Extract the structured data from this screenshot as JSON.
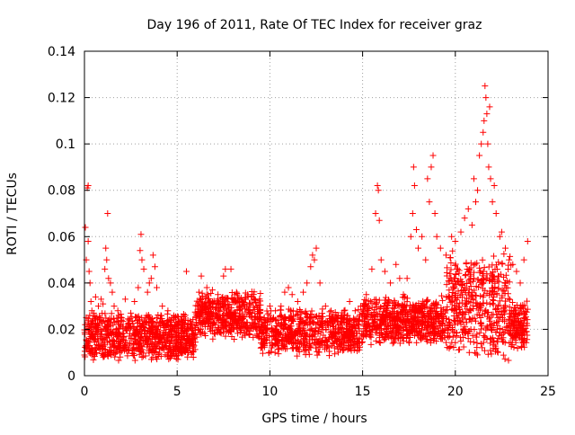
{
  "chart_data": {
    "type": "scatter",
    "title": "Day 196 of 2011, Rate Of TEC Index for receiver graz",
    "xlabel": "GPS time / hours",
    "ylabel": "ROTI / TECUs",
    "xlim": [
      0,
      25
    ],
    "ylim": [
      0,
      0.14
    ],
    "x_ticks": [
      0,
      5,
      10,
      15,
      20,
      25
    ],
    "y_ticks": [
      0,
      0.02,
      0.04,
      0.06,
      0.08,
      0.1,
      0.12,
      0.14
    ],
    "x_tick_labels": [
      "0",
      "5",
      "10",
      "15",
      "20",
      "25"
    ],
    "y_tick_labels": [
      "0",
      "0.02",
      "0.04",
      "0.06",
      "0.08",
      "0.1",
      "0.12",
      "0.14"
    ],
    "grid": true,
    "marker": "plus",
    "color": "#ff0000",
    "series": [
      {
        "points": [
          [
            0.05,
            0.064
          ],
          [
            0.1,
            0.05
          ],
          [
            0.15,
            0.081
          ],
          [
            0.2,
            0.082
          ],
          [
            0.2,
            0.058
          ],
          [
            0.25,
            0.045
          ],
          [
            0.3,
            0.04
          ],
          [
            0.35,
            0.032
          ],
          [
            0.4,
            0.028
          ],
          [
            0.5,
            0.027
          ],
          [
            0.6,
            0.034
          ],
          [
            0.75,
            0.03
          ],
          [
            0.9,
            0.033
          ],
          [
            1.0,
            0.031
          ],
          [
            1.1,
            0.046
          ],
          [
            1.15,
            0.055
          ],
          [
            1.2,
            0.05
          ],
          [
            1.25,
            0.07
          ],
          [
            1.3,
            0.042
          ],
          [
            1.4,
            0.04
          ],
          [
            1.5,
            0.036
          ],
          [
            1.6,
            0.03
          ],
          [
            1.8,
            0.028
          ],
          [
            2.0,
            0.025
          ],
          [
            2.2,
            0.033
          ],
          [
            2.5,
            0.027
          ],
          [
            2.7,
            0.032
          ],
          [
            2.9,
            0.038
          ],
          [
            3.0,
            0.054
          ],
          [
            3.05,
            0.061
          ],
          [
            3.1,
            0.05
          ],
          [
            3.2,
            0.046
          ],
          [
            3.4,
            0.036
          ],
          [
            3.5,
            0.04
          ],
          [
            3.6,
            0.042
          ],
          [
            3.7,
            0.052
          ],
          [
            3.8,
            0.047
          ],
          [
            3.9,
            0.038
          ],
          [
            4.2,
            0.03
          ],
          [
            4.5,
            0.028
          ],
          [
            4.8,
            0.025
          ],
          [
            5.2,
            0.024
          ],
          [
            5.5,
            0.045
          ],
          [
            5.8,
            0.022
          ],
          [
            6.1,
            0.03
          ],
          [
            6.3,
            0.043
          ],
          [
            6.6,
            0.038
          ],
          [
            6.9,
            0.037
          ],
          [
            7.2,
            0.035
          ],
          [
            7.5,
            0.043
          ],
          [
            7.6,
            0.046
          ],
          [
            7.9,
            0.046
          ],
          [
            8.2,
            0.036
          ],
          [
            8.5,
            0.032
          ],
          [
            8.8,
            0.035
          ],
          [
            9.0,
            0.034
          ],
          [
            9.3,
            0.03
          ],
          [
            9.7,
            0.025
          ],
          [
            10.0,
            0.03
          ],
          [
            10.3,
            0.028
          ],
          [
            10.6,
            0.03
          ],
          [
            10.8,
            0.036
          ],
          [
            11.0,
            0.038
          ],
          [
            11.2,
            0.035
          ],
          [
            11.5,
            0.032
          ],
          [
            11.8,
            0.036
          ],
          [
            12.0,
            0.04
          ],
          [
            12.2,
            0.047
          ],
          [
            12.3,
            0.052
          ],
          [
            12.4,
            0.05
          ],
          [
            12.5,
            0.055
          ],
          [
            12.7,
            0.04
          ],
          [
            13.0,
            0.03
          ],
          [
            13.3,
            0.028
          ],
          [
            13.6,
            0.025
          ],
          [
            14.0,
            0.028
          ],
          [
            14.3,
            0.032
          ],
          [
            14.6,
            0.028
          ],
          [
            14.9,
            0.03
          ],
          [
            15.2,
            0.035
          ],
          [
            15.5,
            0.046
          ],
          [
            15.7,
            0.07
          ],
          [
            15.8,
            0.082
          ],
          [
            15.85,
            0.08
          ],
          [
            15.9,
            0.067
          ],
          [
            16.0,
            0.05
          ],
          [
            16.2,
            0.045
          ],
          [
            16.5,
            0.04
          ],
          [
            16.8,
            0.048
          ],
          [
            17.0,
            0.042
          ],
          [
            17.2,
            0.035
          ],
          [
            17.4,
            0.042
          ],
          [
            17.6,
            0.06
          ],
          [
            17.7,
            0.07
          ],
          [
            17.75,
            0.09
          ],
          [
            17.8,
            0.082
          ],
          [
            17.9,
            0.063
          ],
          [
            18.0,
            0.055
          ],
          [
            18.2,
            0.06
          ],
          [
            18.4,
            0.05
          ],
          [
            18.5,
            0.085
          ],
          [
            18.6,
            0.075
          ],
          [
            18.7,
            0.09
          ],
          [
            18.8,
            0.095
          ],
          [
            18.9,
            0.07
          ],
          [
            19.0,
            0.06
          ],
          [
            19.2,
            0.055
          ],
          [
            19.5,
            0.052
          ],
          [
            19.8,
            0.06
          ],
          [
            20.0,
            0.058
          ],
          [
            20.3,
            0.062
          ],
          [
            20.5,
            0.068
          ],
          [
            20.7,
            0.072
          ],
          [
            20.9,
            0.065
          ],
          [
            21.0,
            0.085
          ],
          [
            21.1,
            0.075
          ],
          [
            21.2,
            0.08
          ],
          [
            21.3,
            0.095
          ],
          [
            21.4,
            0.1
          ],
          [
            21.5,
            0.105
          ],
          [
            21.55,
            0.11
          ],
          [
            21.6,
            0.125
          ],
          [
            21.65,
            0.12
          ],
          [
            21.7,
            0.113
          ],
          [
            21.75,
            0.1
          ],
          [
            21.8,
            0.09
          ],
          [
            21.85,
            0.116
          ],
          [
            21.9,
            0.085
          ],
          [
            22.0,
            0.075
          ],
          [
            22.1,
            0.082
          ],
          [
            22.2,
            0.07
          ],
          [
            22.4,
            0.06
          ],
          [
            22.5,
            0.062
          ],
          [
            22.7,
            0.055
          ],
          [
            22.9,
            0.05
          ],
          [
            23.1,
            0.048
          ],
          [
            23.3,
            0.045
          ],
          [
            23.5,
            0.04
          ],
          [
            23.7,
            0.05
          ],
          [
            23.9,
            0.058
          ]
        ]
      }
    ]
  }
}
